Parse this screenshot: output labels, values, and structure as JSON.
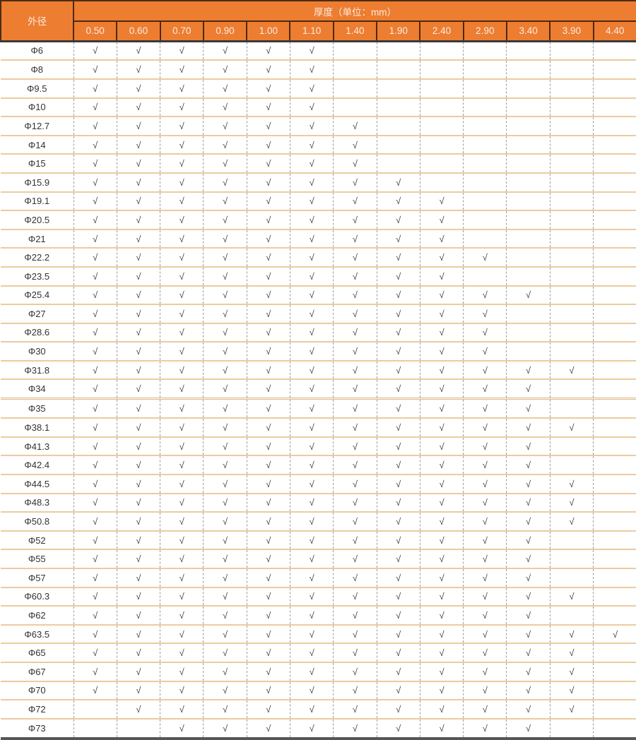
{
  "table": {
    "corner_label": "外径",
    "header_title": "厚度（单位：mm）",
    "thickness_columns": [
      "0.50",
      "0.60",
      "0.70",
      "0.90",
      "1.00",
      "1.10",
      "1.40",
      "1.90",
      "2.40",
      "2.90",
      "3.40",
      "3.90",
      "4.40"
    ],
    "check_symbol": "√",
    "rows": [
      {
        "label": "Φ6",
        "checks": [
          "√",
          "√",
          "√",
          "√",
          "√",
          "√",
          "",
          "",
          "",
          "",
          "",
          "",
          ""
        ]
      },
      {
        "label": "Φ8",
        "checks": [
          "√",
          "√",
          "√",
          "√",
          "√",
          "√",
          "",
          "",
          "",
          "",
          "",
          "",
          ""
        ]
      },
      {
        "label": "Φ9.5",
        "checks": [
          "√",
          "√",
          "√",
          "√",
          "√",
          "√",
          "",
          "",
          "",
          "",
          "",
          "",
          ""
        ]
      },
      {
        "label": "Φ10",
        "checks": [
          "√",
          "√",
          "√",
          "√",
          "√",
          "√",
          "",
          "",
          "",
          "",
          "",
          "",
          ""
        ]
      },
      {
        "label": "Φ12.7",
        "checks": [
          "√",
          "√",
          "√",
          "√",
          "√",
          "√",
          "√",
          "",
          "",
          "",
          "",
          "",
          ""
        ]
      },
      {
        "label": "Φ14",
        "checks": [
          "√",
          "√",
          "√",
          "√",
          "√",
          "√",
          "√",
          "",
          "",
          "",
          "",
          "",
          ""
        ]
      },
      {
        "label": "Φ15",
        "checks": [
          "√",
          "√",
          "√",
          "√",
          "√",
          "√",
          "√",
          "",
          "",
          "",
          "",
          "",
          ""
        ]
      },
      {
        "label": "Φ15.9",
        "checks": [
          "√",
          "√",
          "√",
          "√",
          "√",
          "√",
          "√",
          "√",
          "",
          "",
          "",
          "",
          ""
        ]
      },
      {
        "label": "Φ19.1",
        "checks": [
          "√",
          "√",
          "√",
          "√",
          "√",
          "√",
          "√",
          "√",
          "√",
          "",
          "",
          "",
          ""
        ]
      },
      {
        "label": "Φ20.5",
        "checks": [
          "√",
          "√",
          "√",
          "√",
          "√",
          "√",
          "√",
          "√",
          "√",
          "",
          "",
          "",
          ""
        ]
      },
      {
        "label": "Φ21",
        "checks": [
          "√",
          "√",
          "√",
          "√",
          "√",
          "√",
          "√",
          "√",
          "√",
          "",
          "",
          "",
          ""
        ]
      },
      {
        "label": "Φ22.2",
        "checks": [
          "√",
          "√",
          "√",
          "√",
          "√",
          "√",
          "√",
          "√",
          "√",
          "√",
          "",
          "",
          ""
        ]
      },
      {
        "label": "Φ23.5",
        "checks": [
          "√",
          "√",
          "√",
          "√",
          "√",
          "√",
          "√",
          "√",
          "√",
          "",
          "",
          "",
          ""
        ]
      },
      {
        "label": "Φ25.4",
        "checks": [
          "√",
          "√",
          "√",
          "√",
          "√",
          "√",
          "√",
          "√",
          "√",
          "√",
          "√",
          "",
          ""
        ]
      },
      {
        "label": "Φ27",
        "checks": [
          "√",
          "√",
          "√",
          "√",
          "√",
          "√",
          "√",
          "√",
          "√",
          "√",
          "",
          "",
          ""
        ]
      },
      {
        "label": "Φ28.6",
        "checks": [
          "√",
          "√",
          "√",
          "√",
          "√",
          "√",
          "√",
          "√",
          "√",
          "√",
          "",
          "",
          ""
        ]
      },
      {
        "label": "Φ30",
        "checks": [
          "√",
          "√",
          "√",
          "√",
          "√",
          "√",
          "√",
          "√",
          "√",
          "√",
          "",
          "",
          ""
        ]
      },
      {
        "label": "Φ31.8",
        "checks": [
          "√",
          "√",
          "√",
          "√",
          "√",
          "√",
          "√",
          "√",
          "√",
          "√",
          "√",
          "√",
          ""
        ]
      },
      {
        "label": "Φ34",
        "checks": [
          "√",
          "√",
          "√",
          "√",
          "√",
          "√",
          "√",
          "√",
          "√",
          "√",
          "√",
          "",
          ""
        ]
      },
      {
        "label": "Φ35",
        "divider": true,
        "checks": [
          "√",
          "√",
          "√",
          "√",
          "√",
          "√",
          "√",
          "√",
          "√",
          "√",
          "√",
          "",
          ""
        ]
      },
      {
        "label": "Φ38.1",
        "checks": [
          "√",
          "√",
          "√",
          "√",
          "√",
          "√",
          "√",
          "√",
          "√",
          "√",
          "√",
          "√",
          ""
        ]
      },
      {
        "label": "Φ41.3",
        "checks": [
          "√",
          "√",
          "√",
          "√",
          "√",
          "√",
          "√",
          "√",
          "√",
          "√",
          "√",
          "",
          ""
        ]
      },
      {
        "label": "Φ42.4",
        "checks": [
          "√",
          "√",
          "√",
          "√",
          "√",
          "√",
          "√",
          "√",
          "√",
          "√",
          "√",
          "",
          ""
        ]
      },
      {
        "label": "Φ44.5",
        "checks": [
          "√",
          "√",
          "√",
          "√",
          "√",
          "√",
          "√",
          "√",
          "√",
          "√",
          "√",
          "√",
          ""
        ]
      },
      {
        "label": "Φ48.3",
        "checks": [
          "√",
          "√",
          "√",
          "√",
          "√",
          "√",
          "√",
          "√",
          "√",
          "√",
          "√",
          "√",
          ""
        ]
      },
      {
        "label": "Φ50.8",
        "checks": [
          "√",
          "√",
          "√",
          "√",
          "√",
          "√",
          "√",
          "√",
          "√",
          "√",
          "√",
          "√",
          ""
        ]
      },
      {
        "label": "Φ52",
        "checks": [
          "√",
          "√",
          "√",
          "√",
          "√",
          "√",
          "√",
          "√",
          "√",
          "√",
          "√",
          "",
          ""
        ]
      },
      {
        "label": "Φ55",
        "checks": [
          "√",
          "√",
          "√",
          "√",
          "√",
          "√",
          "√",
          "√",
          "√",
          "√",
          "√",
          "",
          ""
        ]
      },
      {
        "label": "Φ57",
        "checks": [
          "√",
          "√",
          "√",
          "√",
          "√",
          "√",
          "√",
          "√",
          "√",
          "√",
          "√",
          "",
          ""
        ]
      },
      {
        "label": "Φ60.3",
        "checks": [
          "√",
          "√",
          "√",
          "√",
          "√",
          "√",
          "√",
          "√",
          "√",
          "√",
          "√",
          "√",
          ""
        ]
      },
      {
        "label": "Φ62",
        "checks": [
          "√",
          "√",
          "√",
          "√",
          "√",
          "√",
          "√",
          "√",
          "√",
          "√",
          "√",
          "",
          ""
        ]
      },
      {
        "label": "Φ63.5",
        "checks": [
          "√",
          "√",
          "√",
          "√",
          "√",
          "√",
          "√",
          "√",
          "√",
          "√",
          "√",
          "√",
          "√"
        ]
      },
      {
        "label": "Φ65",
        "checks": [
          "√",
          "√",
          "√",
          "√",
          "√",
          "√",
          "√",
          "√",
          "√",
          "√",
          "√",
          "√",
          ""
        ]
      },
      {
        "label": "Φ67",
        "checks": [
          "√",
          "√",
          "√",
          "√",
          "√",
          "√",
          "√",
          "√",
          "√",
          "√",
          "√",
          "√",
          ""
        ]
      },
      {
        "label": "Φ70",
        "checks": [
          "√",
          "√",
          "√",
          "√",
          "√",
          "√",
          "√",
          "√",
          "√",
          "√",
          "√",
          "√",
          ""
        ]
      },
      {
        "label": "Φ72",
        "checks": [
          "",
          "√",
          "√",
          "√",
          "√",
          "√",
          "√",
          "√",
          "√",
          "√",
          "√",
          "√",
          ""
        ]
      },
      {
        "label": "Φ73",
        "checks": [
          "",
          "",
          "√",
          "√",
          "√",
          "√",
          "√",
          "√",
          "√",
          "√",
          "√",
          "",
          ""
        ]
      }
    ]
  },
  "colors": {
    "header_bg": "#ED7D31",
    "header_text": "#FBECE0",
    "header_border": "#4E2A0E",
    "header_bottom_border": "#3A3A3A",
    "grid_horizontal": "#ECCB9E",
    "grid_vertical_dashed": "#9C9C9C",
    "check_text": "#3C3C3C",
    "label_text": "#333333",
    "table_bottom_border": "#565656"
  }
}
